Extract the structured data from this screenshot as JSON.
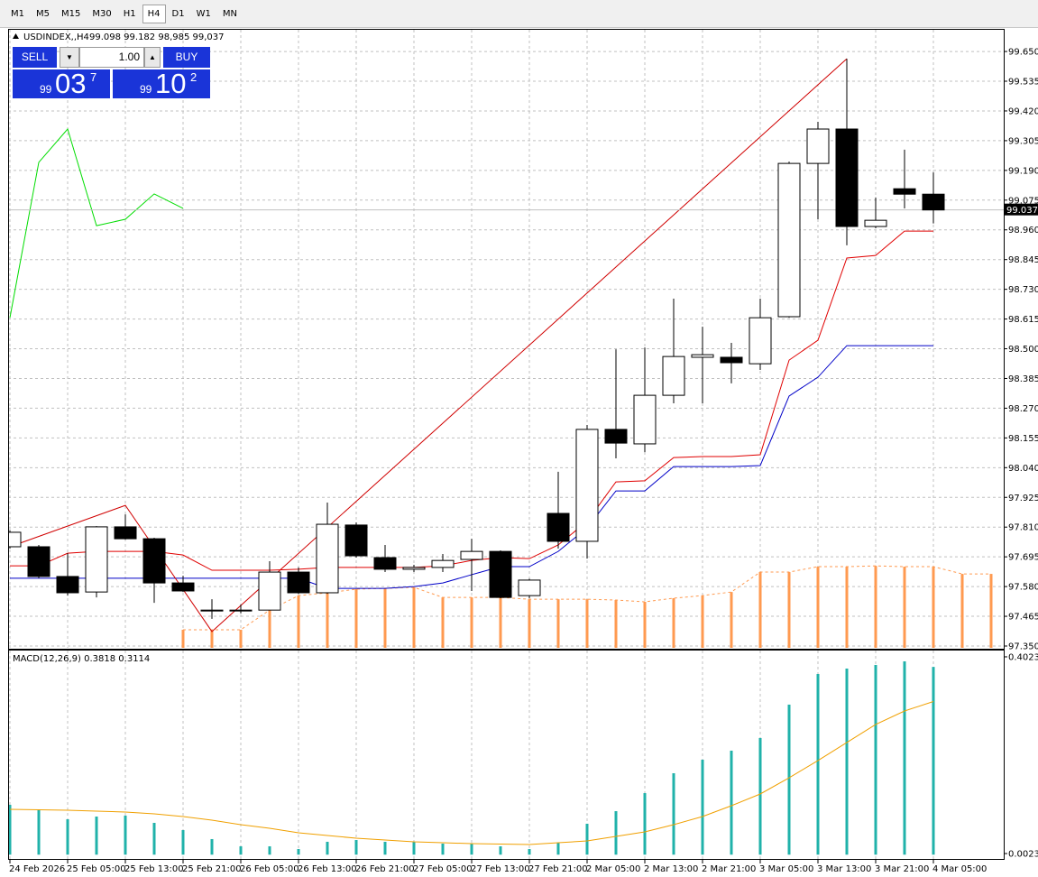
{
  "toolbar": {
    "timeframes": [
      "M1",
      "M5",
      "M15",
      "M30",
      "H1",
      "H4",
      "D1",
      "W1",
      "MN"
    ],
    "active": "H4"
  },
  "trade_panel": {
    "sell": "SELL",
    "lots": "1.00",
    "buy": "BUY",
    "bid_big": "99",
    "bid_main": "03",
    "bid_sup": "7",
    "ask_big": "99",
    "ask_main": "10",
    "ask_sup": "2"
  },
  "chart_data": [
    {
      "type": "candlestick",
      "symbol": "USDINDEX,,H4",
      "ohlc_text": "99.098 99.182 98,985 99,037",
      "categories": [
        "24 Feb 2026",
        null,
        "25 Feb 05:00",
        null,
        "25 Feb 13:00",
        null,
        "25 Feb 21:00",
        null,
        "26 Feb 05:00",
        null,
        "26 Feb 13:00",
        null,
        "26 Feb 21:00",
        null,
        "27 Feb 05:00",
        null,
        "27 Feb 13:00",
        null,
        "27 Feb 21:00",
        null,
        "2 Mar 05:00",
        null,
        "2 Mar 13:00",
        null,
        "2 Mar 21:00",
        null,
        "3 Mar 05:00",
        null,
        "3 Mar 13:00",
        null,
        "3 Mar 21:00",
        null,
        "4 Mar 05:00"
      ],
      "open": [
        97.734,
        97.734,
        97.619,
        97.559,
        97.811,
        97.765,
        97.594,
        97.486,
        97.486,
        97.489,
        97.636,
        97.556,
        97.818,
        97.692,
        97.647,
        97.654,
        97.685,
        97.716,
        97.545,
        97.863,
        97.755,
        98.188,
        98.132,
        98.32,
        98.467,
        98.467,
        98.442,
        98.624,
        99.217,
        99.35,
        98.973,
        99.119,
        99.098
      ],
      "high": [
        97.797,
        97.741,
        97.709,
        97.814,
        97.859,
        97.769,
        97.622,
        97.531,
        97.51,
        97.678,
        97.654,
        97.905,
        97.828,
        97.741,
        97.664,
        97.706,
        97.765,
        97.72,
        97.61,
        98.024,
        98.205,
        98.498,
        98.505,
        98.694,
        98.585,
        98.523,
        98.694,
        99.224,
        99.378,
        99.622,
        99.085,
        99.27,
        99.182
      ],
      "low": [
        97.727,
        97.612,
        97.545,
        97.538,
        97.762,
        97.517,
        97.559,
        97.455,
        97.476,
        97.489,
        97.552,
        97.552,
        97.692,
        97.636,
        97.636,
        97.636,
        97.563,
        97.535,
        97.535,
        97.727,
        97.688,
        98.076,
        98.1,
        98.289,
        98.289,
        98.366,
        98.418,
        98.62,
        99.001,
        98.9,
        98.966,
        99.043,
        98.985
      ],
      "close": [
        97.79,
        97.619,
        97.556,
        97.811,
        97.765,
        97.594,
        97.563,
        97.489,
        97.489,
        97.636,
        97.556,
        97.821,
        97.699,
        97.647,
        97.654,
        97.681,
        97.716,
        97.538,
        97.605,
        97.755,
        98.188,
        98.135,
        98.32,
        98.47,
        98.477,
        98.446,
        98.62,
        99.217,
        99.35,
        98.973,
        98.997,
        99.098,
        99.037
      ],
      "bull_color": "#ffffff",
      "bear_color": "#000000",
      "series": [
        {
          "style": "bar",
          "color": "#ff9a50",
          "x": [
            6,
            7,
            8,
            9,
            10,
            11,
            12,
            13,
            14,
            15,
            16,
            17,
            18,
            19,
            20,
            21,
            22,
            23,
            24,
            25,
            26,
            27,
            28,
            29,
            30,
            31,
            32,
            33,
            34
          ],
          "values": [
            97.413,
            97.413,
            97.413,
            97.489,
            97.545,
            97.556,
            97.57,
            97.573,
            97.577,
            97.538,
            97.538,
            97.538,
            97.531,
            97.531,
            97.531,
            97.528,
            97.521,
            97.535,
            97.545,
            97.559,
            97.636,
            97.636,
            97.657,
            97.657,
            97.66,
            97.657,
            97.657,
            97.629,
            97.629
          ]
        },
        {
          "style": "line",
          "color": "#e00000",
          "values": [
            97.66,
            97.66,
            97.709,
            97.716,
            97.716,
            97.716,
            97.702,
            97.643,
            97.643,
            97.643,
            97.647,
            97.654,
            97.654,
            97.654,
            97.654,
            97.66,
            97.681,
            97.692,
            97.688,
            97.741,
            97.832,
            97.985,
            97.989,
            98.079,
            98.083,
            98.083,
            98.09,
            98.456,
            98.533,
            98.851,
            98.861,
            98.955,
            98.955
          ]
        },
        {
          "style": "line",
          "color": "#0000c8",
          "values": [
            97.612,
            97.612,
            97.612,
            97.612,
            97.612,
            97.612,
            97.612,
            97.612,
            97.612,
            97.612,
            97.612,
            97.573,
            97.573,
            97.573,
            97.58,
            97.594,
            97.626,
            97.657,
            97.657,
            97.716,
            97.807,
            97.95,
            97.95,
            98.044,
            98.044,
            98.044,
            98.048,
            98.317,
            98.39,
            98.512,
            98.512,
            98.512,
            98.512
          ]
        },
        {
          "style": "line",
          "color": "#00dd00",
          "values": [
            98.62,
            99.221,
            99.35,
            98.976,
            99.001,
            99.099,
            99.043,
            null,
            null,
            null,
            null,
            null,
            null,
            null,
            null,
            null,
            null,
            null,
            null,
            null,
            null,
            null,
            null,
            null,
            null,
            null,
            null,
            null,
            null,
            null,
            null,
            null,
            null
          ]
        },
        {
          "style": "line",
          "color": "#d00000",
          "x": [
            0,
            4,
            7,
            29
          ],
          "values": [
            97.734,
            97.894,
            97.406,
            99.622
          ]
        }
      ],
      "ylim": [
        97.343,
        99.734
      ],
      "yticks": [
        {
          "value": 99.65,
          "label": "99.650"
        },
        99.535,
        {
          "value": 99.42,
          "label": "99.420"
        },
        99.305,
        {
          "value": 99.19,
          "label": "99.190"
        },
        99.075,
        {
          "value": 98.96,
          "label": "98.960"
        },
        98.845,
        {
          "value": 98.73,
          "label": "98.730"
        },
        98.615,
        {
          "value": 98.5,
          "label": "98.500"
        },
        98.385,
        {
          "value": 98.27,
          "label": "98.270"
        },
        98.155,
        {
          "value": 98.04,
          "label": "98.040"
        },
        97.925,
        {
          "value": 97.81,
          "label": "97.810"
        },
        97.695,
        {
          "value": 97.58,
          "label": "97.580"
        },
        97.465,
        {
          "value": 97.35,
          "label": "97.350"
        }
      ],
      "grid": true
    },
    {
      "type": "macd",
      "label": "MACD(12,26,9) 0.3818 0.3114",
      "series": [
        {
          "style": "bar",
          "color": "#20b2aa",
          "values": [
            0.1014,
            0.0904,
            0.072,
            0.0775,
            0.0794,
            0.0647,
            0.05,
            0.0317,
            0.017,
            0.017,
            0.0115,
            0.0262,
            0.0298,
            0.0262,
            0.0262,
            0.0225,
            0.0225,
            0.017,
            0.0115,
            0.0243,
            0.0629,
            0.0885,
            0.1252,
            0.1656,
            0.1931,
            0.2115,
            0.2372,
            0.3051,
            0.3674,
            0.3784,
            0.3858,
            0.3931,
            0.3818
          ]
        },
        {
          "style": "line",
          "color": "#f0a000",
          "values": [
            0.0922,
            0.0913,
            0.0904,
            0.0885,
            0.0867,
            0.083,
            0.0775,
            0.0702,
            0.061,
            0.0537,
            0.0445,
            0.039,
            0.0335,
            0.0298,
            0.0262,
            0.0243,
            0.0225,
            0.0216,
            0.0206,
            0.0243,
            0.028,
            0.0372,
            0.0463,
            0.061,
            0.0775,
            0.0995,
            0.1234,
            0.1564,
            0.1913,
            0.228,
            0.2647,
            0.2922,
            0.3114
          ]
        }
      ],
      "ylim": [
        -0.0087,
        0.4151
      ],
      "yticks": [
        0.4023,
        0.0023
      ]
    }
  ]
}
